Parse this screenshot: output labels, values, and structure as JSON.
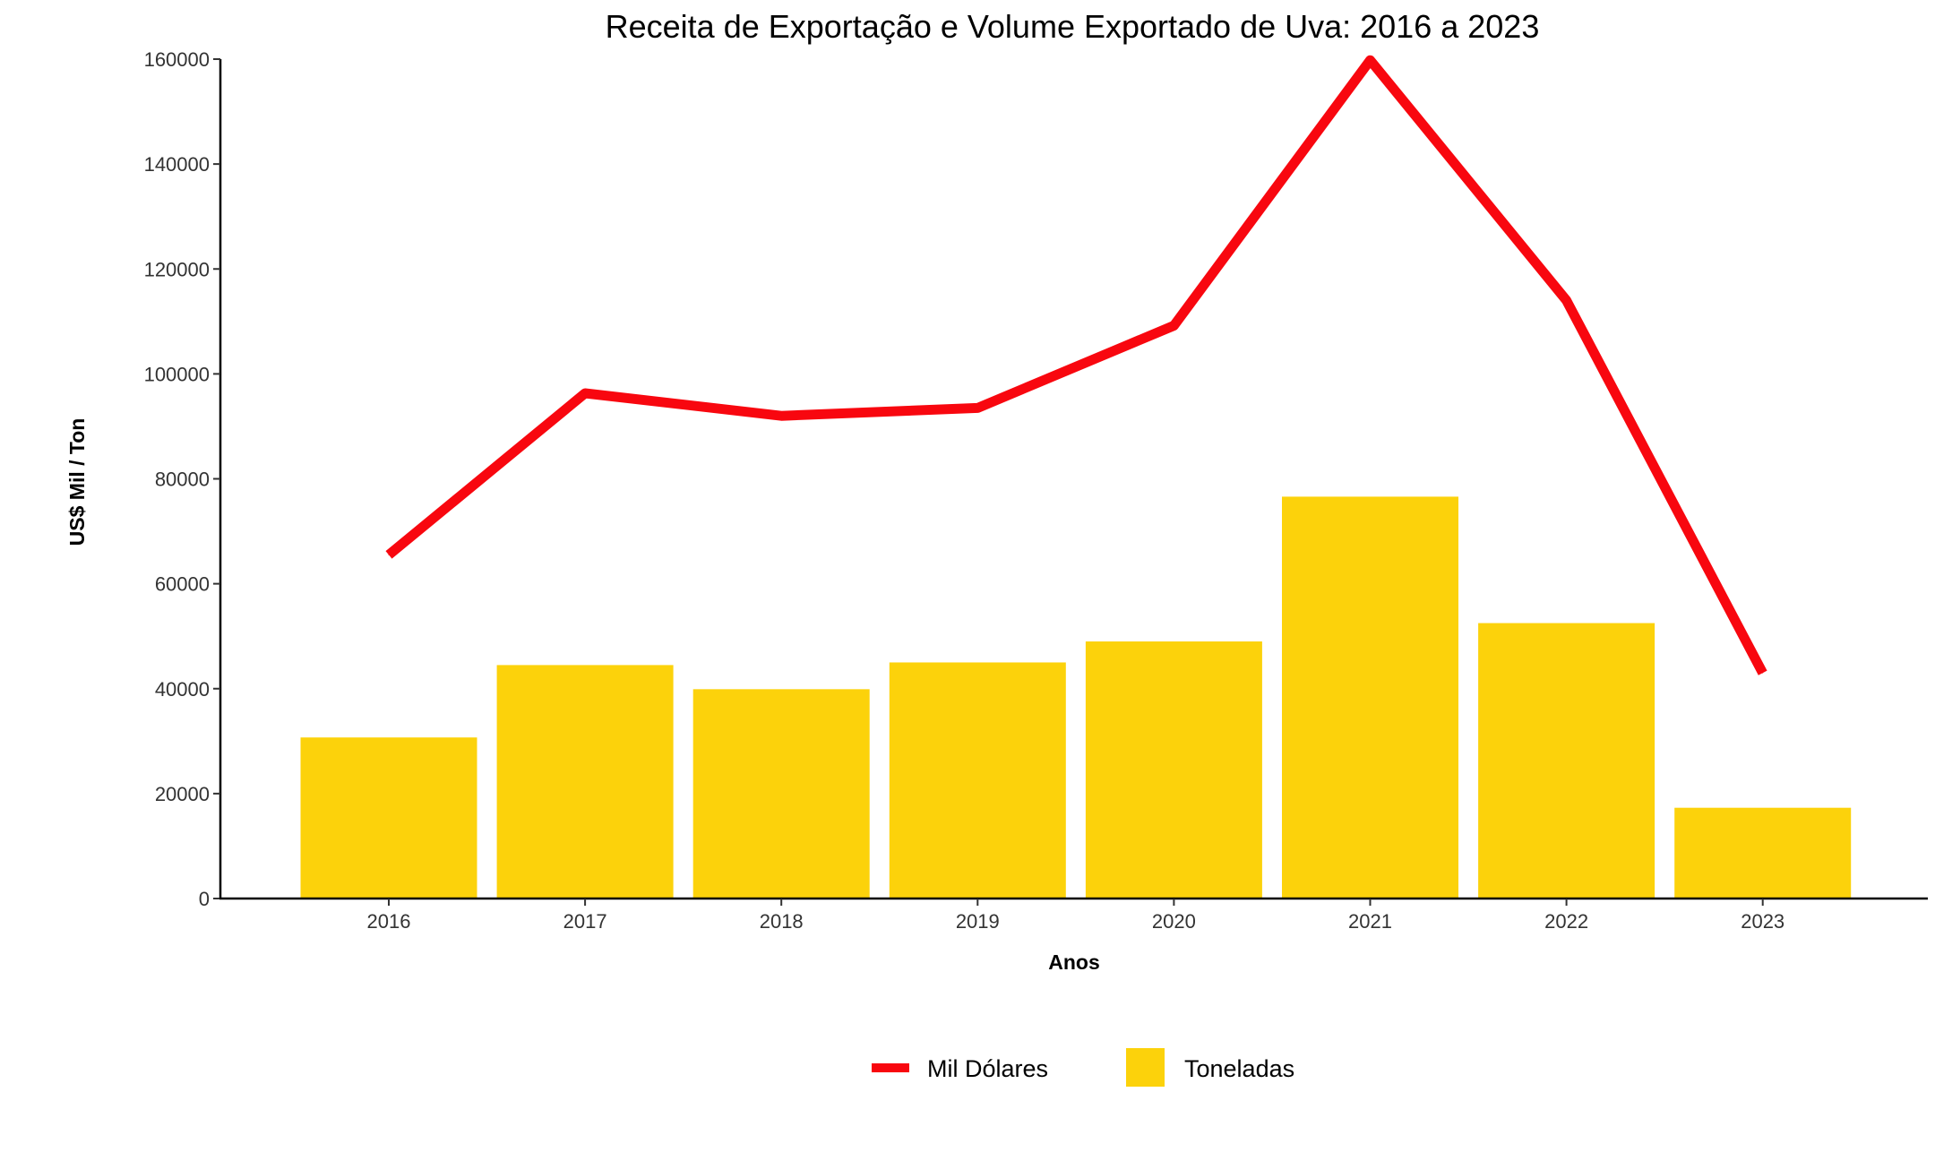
{
  "chart_data": {
    "type": "bar",
    "title": "Receita de Exportação e Volume Exportado de Uva: 2016 a 2023",
    "xlabel": "Anos",
    "ylabel": "US$ Mil / Ton",
    "categories": [
      "2016",
      "2017",
      "2018",
      "2019",
      "2020",
      "2021",
      "2022",
      "2023"
    ],
    "ylim": [
      0,
      160000
    ],
    "yticks": [
      0,
      20000,
      40000,
      60000,
      80000,
      100000,
      120000,
      140000,
      160000
    ],
    "grid": false,
    "legend_position": "bottom",
    "series": [
      {
        "name": "Toneladas",
        "type": "bar",
        "color": "#FCD20B",
        "values": [
          30700,
          44500,
          39900,
          45000,
          49000,
          76600,
          52500,
          17300
        ]
      },
      {
        "name": "Mil Dólares",
        "type": "line",
        "color": "#F8070F",
        "values": [
          65500,
          96300,
          92000,
          93500,
          109200,
          159800,
          114000,
          43000
        ]
      }
    ]
  }
}
